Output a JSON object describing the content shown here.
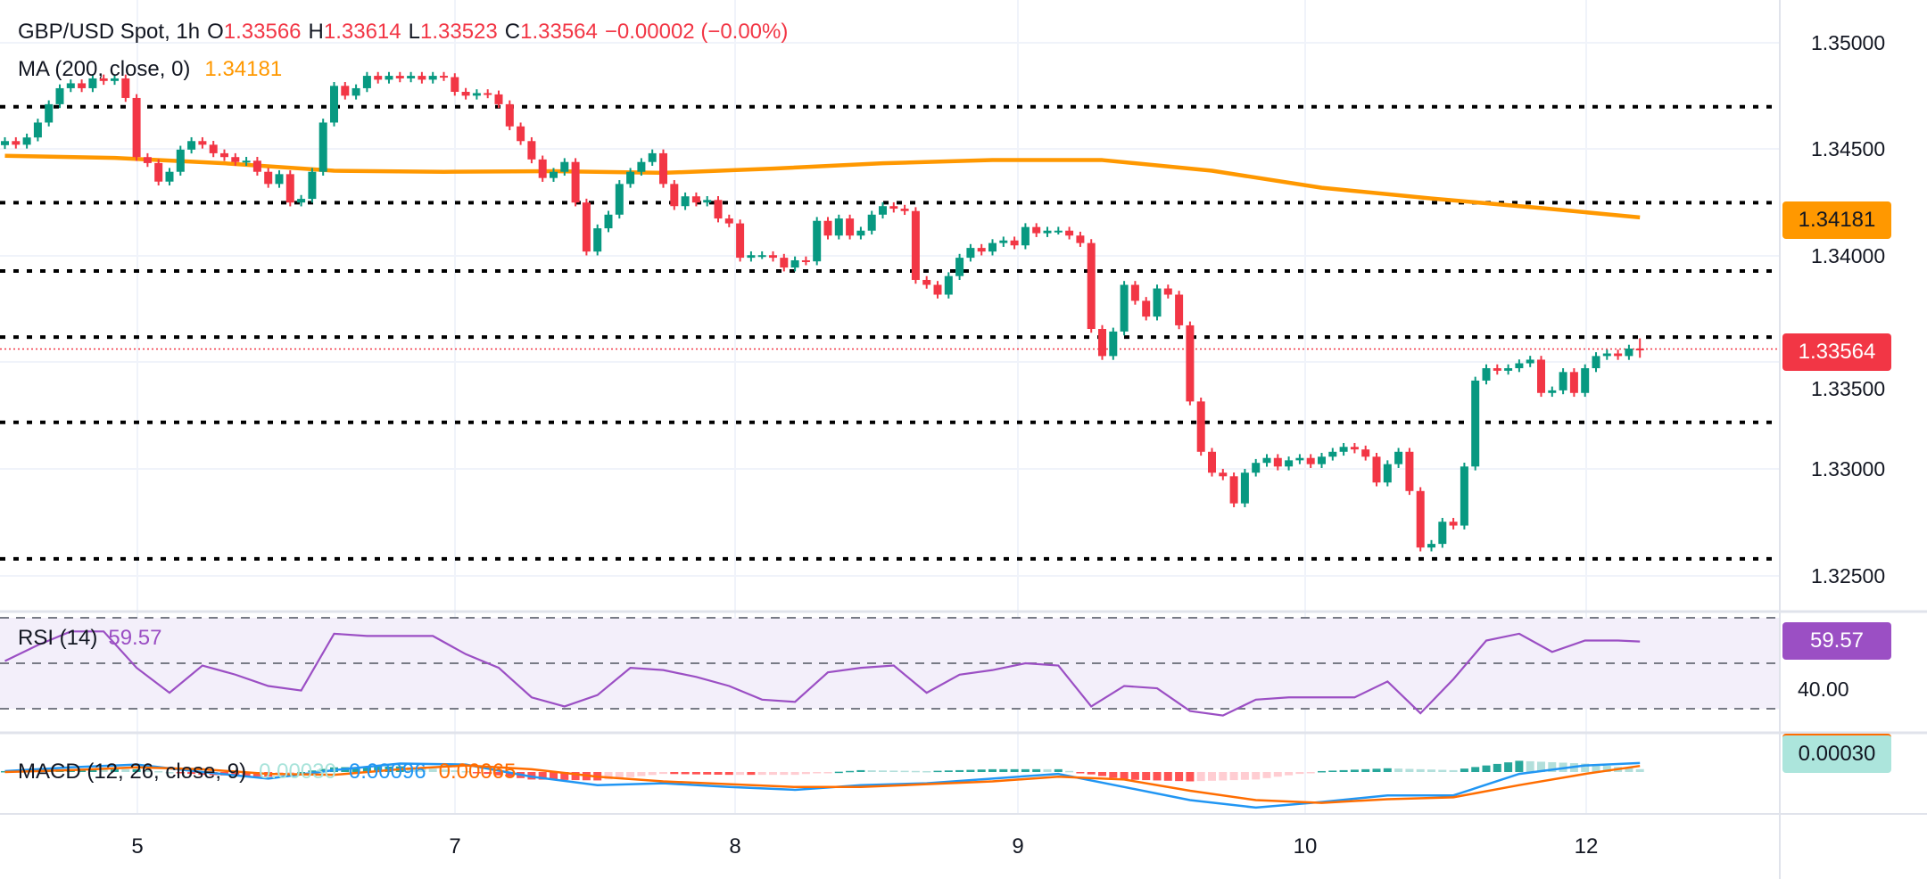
{
  "header": {
    "symbol": "GBP/USD Spot, 1h",
    "o_label": "O",
    "o": "1.33566",
    "h_label": "H",
    "h": "1.33614",
    "l_label": "L",
    "l": "1.33523",
    "c_label": "C",
    "c": "1.33564",
    "change": "−0.00002 (−0.00%)"
  },
  "ma_legend": {
    "label": "MA (200, close, 0)",
    "value": "1.34181"
  },
  "rsi_legend": {
    "label": "RSI (14)",
    "value": "59.57"
  },
  "macd_legend": {
    "label": "MACD (12, 26, close, 9)",
    "hist": "0.00030",
    "macd": "0.00096",
    "signal": "0.00065"
  },
  "price_axis": [
    "1.35000",
    "1.34500",
    "1.34000",
    "1.33500",
    "1.33000",
    "1.32500"
  ],
  "badges": {
    "ma": "1.34181",
    "price": "1.33564",
    "rsi": "59.57",
    "rsi_level": "40.00",
    "macd": "0.00030"
  },
  "colors": {
    "up": "#089981",
    "down": "#f23645",
    "ma": "#ff9800",
    "rsi": "#9b4fc4",
    "macd": "#2196f3",
    "signal": "#ff6d00",
    "level_lines": "#000000"
  },
  "chart_data": {
    "type": "candlestick",
    "title": "GBP/USD Spot, 1h",
    "x_ticks": [
      "5",
      "7",
      "8",
      "9",
      "10",
      "12"
    ],
    "ylim": [
      1.3235,
      1.3515
    ],
    "grid": true,
    "last_candle": {
      "open": 1.33566,
      "high": 1.33614,
      "low": 1.33523,
      "close": 1.33564
    },
    "close": [
      1.34539,
      1.34522,
      1.34556,
      1.34626,
      1.34712,
      1.34787,
      1.3481,
      1.34787,
      1.34833,
      1.34821,
      1.34833,
      1.34741,
      1.34464,
      1.34436,
      1.34349,
      1.34395,
      1.34499,
      1.34539,
      1.34522,
      1.34482,
      1.34464,
      1.34441,
      1.34447,
      1.34395,
      1.34338,
      1.34384,
      1.34251,
      1.34268,
      1.34395,
      1.34626,
      1.34798,
      1.34752,
      1.34787,
      1.34845,
      1.34827,
      1.34845,
      1.34833,
      1.34845,
      1.34827,
      1.34845,
      1.34839,
      1.3477,
      1.34752,
      1.34764,
      1.34758,
      1.34712,
      1.34608,
      1.34539,
      1.34453,
      1.34366,
      1.34395,
      1.34441,
      1.34251,
      1.34021,
      1.3413,
      1.34194,
      1.34338,
      1.34395,
      1.34441,
      1.34482,
      1.34338,
      1.34234,
      1.3428,
      1.34251,
      1.34263,
      1.34176,
      1.34153,
      1.33992,
      1.34004,
      1.34004,
      1.33992,
      1.33946,
      1.3398,
      1.33975,
      1.34165,
      1.34096,
      1.34176,
      1.34096,
      1.34119,
      1.34194,
      1.34234,
      1.34222,
      1.34211,
      1.33888,
      1.33865,
      1.33819,
      1.33906,
      1.33992,
      1.34038,
      1.34021,
      1.34061,
      1.34073,
      1.3405,
      1.34136,
      1.34107,
      1.34119,
      1.34119,
      1.34096,
      1.34061,
      1.33658,
      1.33531,
      1.33646,
      1.33865,
      1.3379,
      1.33716,
      1.33848,
      1.33819,
      1.33675,
      1.33318,
      1.33082,
      1.32984,
      1.32967,
      1.3284,
      1.32984,
      1.3303,
      1.33053,
      1.33013,
      1.33042,
      1.33053,
      1.33024,
      1.33059,
      1.33082,
      1.33105,
      1.33093,
      1.33059,
      1.32938,
      1.33024,
      1.33082,
      1.32898,
      1.32633,
      1.3265,
      1.32754,
      1.32736,
      1.33013,
      1.33416,
      1.33474,
      1.33462,
      1.33474,
      1.33497,
      1.33514,
      1.33358,
      1.3337,
      1.33456,
      1.33358,
      1.33474,
      1.33531,
      1.33543,
      1.33531,
      1.33566,
      1.33564
    ],
    "first_open": 1.3452,
    "ma200_every_10": [
      1.3447,
      1.3446,
      1.34435,
      1.344,
      1.34395,
      1.34398,
      1.3439,
      1.3441,
      1.34435,
      1.3445,
      1.3445,
      1.344,
      1.3432,
      1.3427,
      1.34225,
      1.34181
    ],
    "horizontal_levels": [
      1.347,
      1.3425,
      1.3393,
      1.3362,
      1.3322,
      1.3258
    ],
    "rsi": {
      "levels": [
        70,
        50,
        30
      ],
      "every_3": [
        51,
        58,
        64,
        64,
        48,
        37,
        49,
        45,
        40,
        38,
        63,
        62,
        62,
        62,
        54,
        48,
        35,
        31,
        36,
        48,
        47,
        44,
        40,
        34,
        33,
        46,
        48,
        49,
        37,
        45,
        47,
        50,
        49,
        31,
        40,
        39,
        29,
        27,
        34,
        35,
        35,
        35,
        42,
        28,
        43,
        60,
        63,
        55,
        60,
        60,
        59.57
      ]
    },
    "macd": {
      "macd_every_6": [
        0.0001,
        0.0005,
        0.0008,
        0.0,
        -0.0007,
        0.0002,
        0.0009,
        0.0008,
        -0.0005,
        -0.0014,
        -0.0012,
        -0.0016,
        -0.0019,
        -0.0014,
        -0.0012,
        -0.0007,
        -0.0002,
        -0.0016,
        -0.003,
        -0.0038,
        -0.0032,
        -0.0025,
        -0.0025,
        -0.0002,
        0.0007,
        0.00096
      ],
      "signal_every_6": [
        0.0,
        0.0002,
        0.0005,
        0.0003,
        -0.0002,
        -0.0003,
        0.0003,
        0.0007,
        0.0003,
        -0.0005,
        -0.001,
        -0.0013,
        -0.0016,
        -0.0016,
        -0.0013,
        -0.001,
        -0.0005,
        -0.0008,
        -0.002,
        -0.003,
        -0.0033,
        -0.0029,
        -0.0027,
        -0.0014,
        -0.0002,
        0.00065
      ]
    }
  }
}
